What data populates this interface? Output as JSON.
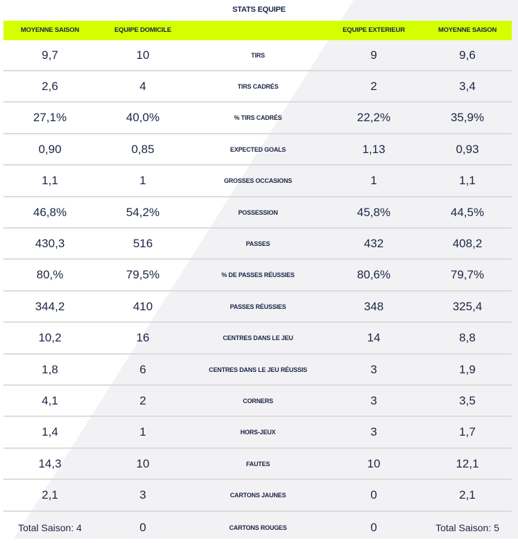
{
  "title": "STATS EQUIPE",
  "headers": [
    "MOYENNE SAISON",
    "EQUIPE DOMICILE",
    "",
    "EQUIPE EXTERIEUR",
    "MOYENNE SAISON"
  ],
  "rows": [
    [
      "9,7",
      "10",
      "TIRS",
      "9",
      "9,6"
    ],
    [
      "2,6",
      "4",
      "TIRS CADRÉS",
      "2",
      "3,4"
    ],
    [
      "27,1%",
      "40,0%",
      "% TIRS CADRÉS",
      "22,2%",
      "35,9%"
    ],
    [
      "0,90",
      "0,85",
      "EXPECTED GOALS",
      "1,13",
      "0,93"
    ],
    [
      "1,1",
      "1",
      "GROSSES OCCASIONS",
      "1",
      "1,1"
    ],
    [
      "46,8%",
      "54,2%",
      "POSSESSION",
      "45,8%",
      "44,5%"
    ],
    [
      "430,3",
      "516",
      "PASSES",
      "432",
      "408,2"
    ],
    [
      "80,%",
      "79,5%",
      "% DE PASSES RÉUSSIES",
      "80,6%",
      "79,7%"
    ],
    [
      "344,2",
      "410",
      "PASSES RÉUSSIES",
      "348",
      "325,4"
    ],
    [
      "10,2",
      "16",
      "CENTRES DANS LE JEU",
      "14",
      "8,8"
    ],
    [
      "1,8",
      "6",
      "CENTRES DANS LE JEU RÉUSSIS",
      "3",
      "1,9"
    ],
    [
      "4,1",
      "2",
      "CORNERS",
      "3",
      "3,5"
    ],
    [
      "1,4",
      "1",
      "HORS-JEUX",
      "3",
      "1,7"
    ],
    [
      "14,3",
      "10",
      "FAUTES",
      "10",
      "12,1"
    ],
    [
      "2,1",
      "3",
      "CARTONS JAUNES",
      "0",
      "2,1"
    ],
    [
      "Total Saison: 4",
      "0",
      "CARTONS ROUGES",
      "0",
      "Total Saison: 5"
    ]
  ],
  "colors": {
    "accent": "#d4ff00",
    "text": "#1b2445",
    "diagonal": "#f2f2f4"
  }
}
